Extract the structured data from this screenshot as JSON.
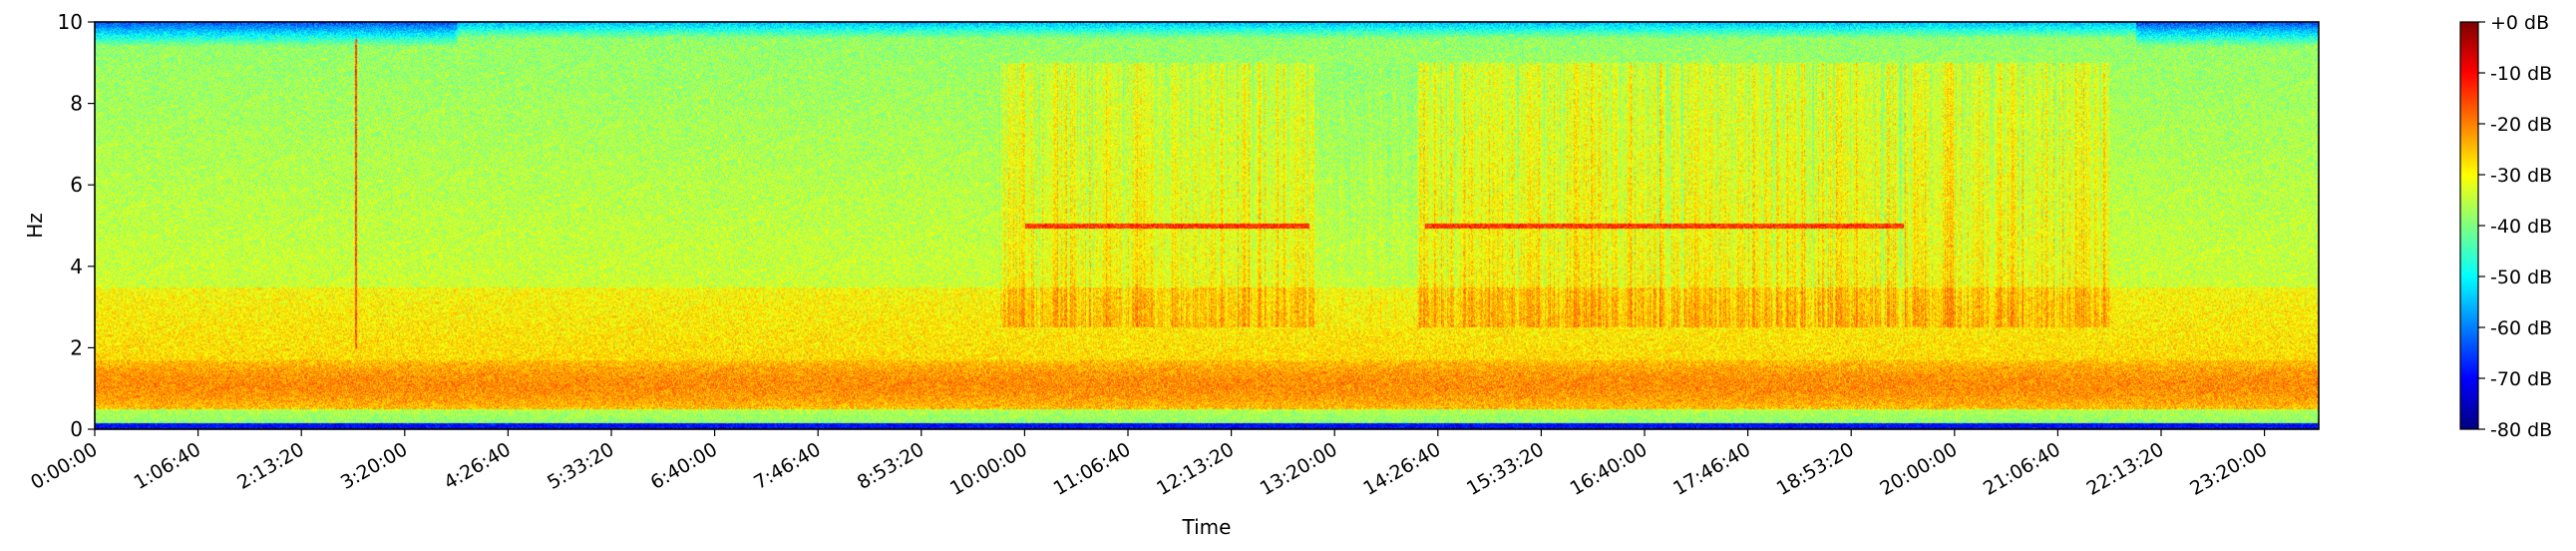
{
  "chart_data": {
    "type": "heatmap",
    "title": "",
    "xlabel": "Time",
    "ylabel": "Hz",
    "x_ticks": [
      "0:00:00",
      "1:06:40",
      "2:13:20",
      "3:20:00",
      "4:26:40",
      "5:33:20",
      "6:40:00",
      "7:46:40",
      "8:53:20",
      "10:00:00",
      "11:06:40",
      "12:13:20",
      "13:20:00",
      "14:26:40",
      "15:33:20",
      "16:40:00",
      "17:46:40",
      "18:53:20",
      "20:00:00",
      "21:06:40",
      "22:13:20",
      "23:20:00"
    ],
    "x_tick_seconds": [
      0,
      4000,
      8000,
      12000,
      16000,
      20000,
      24000,
      28000,
      32000,
      36000,
      40000,
      44000,
      48000,
      52000,
      56000,
      60000,
      64000,
      68000,
      72000,
      76000,
      80000,
      84000
    ],
    "xlim_seconds": [
      0,
      86100
    ],
    "ylim": [
      0,
      10
    ],
    "y_ticks": [
      0,
      2,
      4,
      6,
      8,
      10
    ],
    "colorbar": {
      "range_db": [
        -80,
        0
      ],
      "ticks": [
        "+0 dB",
        "-10 dB",
        "-20 dB",
        "-30 dB",
        "-40 dB",
        "-50 dB",
        "-60 dB",
        "-70 dB",
        "-80 dB"
      ],
      "colormap": "jet"
    },
    "features": {
      "tone_5hz_segments_seconds": [
        [
          36000,
          47000
        ],
        [
          51500,
          70000
        ]
      ],
      "tone_5hz_db": -14,
      "vertical_transient_seconds": 10100,
      "activity_band_seconds": [
        35000,
        78000
      ],
      "activity_band_hz": [
        2.5,
        9.0
      ],
      "low_freq_band_hz": [
        0.5,
        1.6
      ],
      "rolloff_hz": 9.3
    }
  }
}
